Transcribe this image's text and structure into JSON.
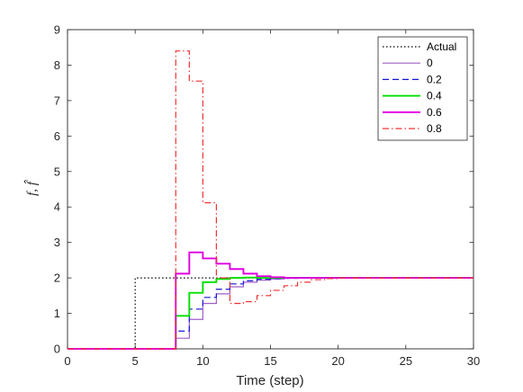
{
  "chart_data": {
    "type": "line",
    "xlabel": "Time (step)",
    "ylabel": "f, f̂",
    "xlim": [
      0,
      30
    ],
    "ylim": [
      0,
      9
    ],
    "xticks": [
      0,
      5,
      10,
      15,
      20,
      25,
      30
    ],
    "yticks": [
      0,
      1,
      2,
      3,
      4,
      5,
      6,
      7,
      8,
      9
    ],
    "grid": false,
    "legend_position": "top-right",
    "series": [
      {
        "name": "Actual",
        "color": "#000000",
        "dash": "dotted",
        "step": true,
        "x": [
          0,
          5,
          30
        ],
        "y": [
          0,
          2,
          2
        ]
      },
      {
        "name": "0",
        "color": "#a05ec8",
        "dash": "solid",
        "step": true,
        "x": [
          0,
          8,
          9,
          10,
          11,
          12,
          13,
          14,
          15,
          16,
          17,
          18,
          30
        ],
        "y": [
          0,
          0.3,
          0.83,
          1.28,
          1.55,
          1.75,
          1.88,
          1.94,
          1.97,
          1.99,
          2.0,
          2.0,
          2.0
        ]
      },
      {
        "name": "0.2",
        "color": "#1515d8",
        "dash": "dashed",
        "step": true,
        "x": [
          0,
          8,
          9,
          10,
          11,
          12,
          13,
          14,
          15,
          16,
          17,
          30
        ],
        "y": [
          0,
          0.5,
          1.12,
          1.45,
          1.68,
          1.83,
          1.92,
          1.96,
          1.98,
          1.99,
          2.0,
          2.0
        ]
      },
      {
        "name": "0.4",
        "color": "#00e000",
        "dash": "solid",
        "step": true,
        "x": [
          0,
          8,
          9,
          10,
          11,
          12,
          13,
          14,
          30
        ],
        "y": [
          0,
          0.93,
          1.58,
          1.88,
          1.97,
          2.0,
          2.01,
          2.0,
          2.0
        ]
      },
      {
        "name": "0.6",
        "color": "#e000e0",
        "dash": "solid",
        "step": true,
        "x": [
          0,
          8,
          9,
          10,
          11,
          12,
          13,
          14,
          15,
          16,
          30
        ],
        "y": [
          0,
          2.12,
          2.72,
          2.55,
          2.4,
          2.25,
          2.12,
          2.05,
          2.02,
          2.0,
          2.0
        ]
      },
      {
        "name": "0.8",
        "color": "#f03030",
        "dash": "dashdot",
        "step": true,
        "x": [
          0,
          8,
          9,
          10,
          11,
          12,
          13,
          14,
          15,
          16,
          17,
          18,
          19,
          20,
          30
        ],
        "y": [
          0,
          8.4,
          7.55,
          4.12,
          2.0,
          1.28,
          1.33,
          1.5,
          1.65,
          1.78,
          1.88,
          1.95,
          1.98,
          2.0,
          2.0
        ]
      }
    ]
  }
}
